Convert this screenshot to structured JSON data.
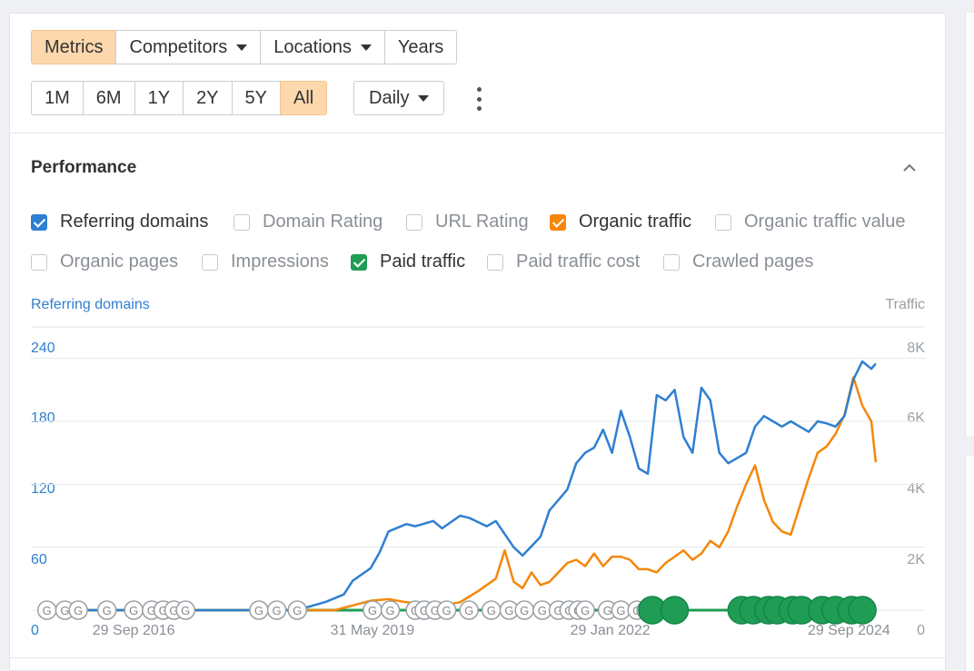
{
  "toolbar": {
    "tabs": [
      {
        "label": "Metrics",
        "active": true,
        "dropdown": false
      },
      {
        "label": "Competitors",
        "active": false,
        "dropdown": true
      },
      {
        "label": "Locations",
        "active": false,
        "dropdown": true
      },
      {
        "label": "Years",
        "active": false,
        "dropdown": false
      }
    ],
    "ranges": [
      {
        "label": "1M",
        "active": false
      },
      {
        "label": "6M",
        "active": false
      },
      {
        "label": "1Y",
        "active": false
      },
      {
        "label": "2Y",
        "active": false
      },
      {
        "label": "5Y",
        "active": false
      },
      {
        "label": "All",
        "active": true
      }
    ],
    "granularity": "Daily",
    "more_icon": "kebab-icon"
  },
  "panel": {
    "title": "Performance",
    "collapse_icon": "chevron-up-icon",
    "metrics": [
      {
        "label": "Referring domains",
        "checked": true,
        "color": "#2f7fd1"
      },
      {
        "label": "Domain Rating",
        "checked": false
      },
      {
        "label": "URL Rating",
        "checked": false
      },
      {
        "label": "Organic traffic",
        "checked": true,
        "color": "#f5870a"
      },
      {
        "label": "Organic traffic value",
        "checked": false
      },
      {
        "label": "Organic pages",
        "checked": false
      },
      {
        "label": "Impressions",
        "checked": false
      },
      {
        "label": "Paid traffic",
        "checked": true,
        "color": "#1f9d55"
      },
      {
        "label": "Paid traffic cost",
        "checked": false
      },
      {
        "label": "Crawled pages",
        "checked": false
      }
    ]
  },
  "colors": {
    "accent": "#fcd8ac",
    "referring_domains": "#2f7fd1",
    "organic_traffic": "#f5870a",
    "paid_traffic": "#1f9d55",
    "checkbox_blue": "#2f7fd1",
    "checkbox_orange": "#f5870a",
    "checkbox_green": "#1f9d55"
  },
  "chart_data": {
    "type": "line",
    "y_left_label": "Referring domains",
    "y_right_label": "Traffic",
    "y_left_ticks": [
      "0",
      "60",
      "120",
      "180",
      "240"
    ],
    "y_right_ticks": [
      "0",
      "2K",
      "4K",
      "6K",
      "8K"
    ],
    "y_left_range": [
      0,
      270
    ],
    "y_right_range": [
      0,
      9000
    ],
    "x_ticks": [
      "29 Sep 2016",
      "31 May 2019",
      "29 Jan 2022",
      "29 Sep 2024"
    ],
    "x_tick_years": [
      2016.75,
      2019.42,
      2022.08,
      2024.75
    ],
    "x_range": [
      2015.6,
      2025.6
    ],
    "grid": true,
    "series": [
      {
        "name": "Referring domains",
        "axis": "left",
        "x": [
          2015.7,
          2018.5,
          2018.7,
          2018.9,
          2019.1,
          2019.2,
          2019.4,
          2019.5,
          2019.6,
          2019.8,
          2019.9,
          2020.1,
          2020.2,
          2020.4,
          2020.5,
          2020.7,
          2020.8,
          2021.0,
          2021.1,
          2021.3,
          2021.4,
          2021.5,
          2021.6,
          2021.7,
          2021.8,
          2021.9,
          2022.0,
          2022.1,
          2022.2,
          2022.3,
          2022.4,
          2022.5,
          2022.6,
          2022.7,
          2022.8,
          2022.9,
          2023.0,
          2023.1,
          2023.2,
          2023.3,
          2023.4,
          2023.5,
          2023.6,
          2023.7,
          2023.8,
          2023.9,
          2024.0,
          2024.1,
          2024.2,
          2024.3,
          2024.4,
          2024.5,
          2024.6,
          2024.7,
          2024.8,
          2024.9,
          2025.0,
          2025.05
        ],
        "values": [
          0,
          0,
          3,
          8,
          15,
          28,
          40,
          55,
          75,
          82,
          80,
          85,
          78,
          90,
          88,
          80,
          85,
          60,
          52,
          70,
          95,
          105,
          115,
          140,
          150,
          155,
          172,
          150,
          190,
          165,
          135,
          130,
          205,
          200,
          210,
          165,
          150,
          212,
          200,
          150,
          140,
          145,
          150,
          175,
          185,
          180,
          175,
          180,
          175,
          170,
          180,
          178,
          175,
          185,
          220,
          237,
          230,
          235
        ]
      },
      {
        "name": "Organic traffic",
        "axis": "right",
        "x": [
          2015.7,
          2019.0,
          2019.2,
          2019.4,
          2019.6,
          2019.8,
          2020.0,
          2020.2,
          2020.4,
          2020.6,
          2020.8,
          2020.9,
          2021.0,
          2021.1,
          2021.2,
          2021.3,
          2021.4,
          2021.5,
          2021.6,
          2021.7,
          2021.8,
          2021.9,
          2022.0,
          2022.1,
          2022.2,
          2022.3,
          2022.4,
          2022.5,
          2022.6,
          2022.7,
          2022.8,
          2022.9,
          2023.0,
          2023.1,
          2023.2,
          2023.3,
          2023.4,
          2023.5,
          2023.6,
          2023.7,
          2023.8,
          2023.9,
          2024.0,
          2024.1,
          2024.2,
          2024.3,
          2024.4,
          2024.5,
          2024.6,
          2024.7,
          2024.8,
          2024.9,
          2025.0,
          2025.05
        ],
        "values": [
          0,
          0,
          150,
          300,
          350,
          250,
          200,
          150,
          250,
          600,
          1000,
          1900,
          900,
          700,
          1200,
          800,
          900,
          1200,
          1500,
          1600,
          1400,
          1800,
          1400,
          1700,
          1700,
          1600,
          1300,
          1300,
          1200,
          1500,
          1700,
          1900,
          1600,
          1800,
          2200,
          2000,
          2500,
          3300,
          4000,
          4600,
          3500,
          2800,
          2500,
          2400,
          3300,
          4200,
          5000,
          5200,
          5600,
          6200,
          7400,
          6500,
          6000,
          4700
        ]
      },
      {
        "name": "Paid traffic",
        "axis": "right",
        "x": [
          2015.7,
          2025.05
        ],
        "values": [
          0,
          0
        ]
      }
    ]
  }
}
